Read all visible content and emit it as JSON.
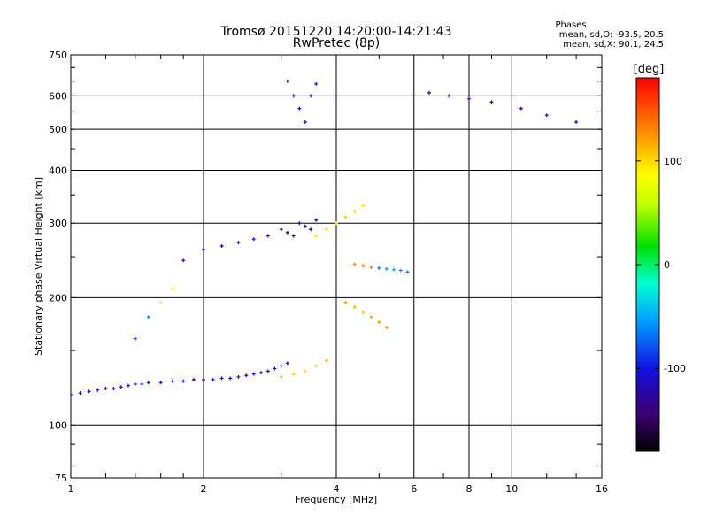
{
  "chart_data": {
    "type": "scatter",
    "title": "Tromsø 20151220 14:20:00-14:21:43",
    "subtitle": "RwPretec (8p)",
    "stats": {
      "heading": "Phases",
      "line1": "mean, sd,O: -93.5, 20.5",
      "line2": "mean, sd,X:  90.1, 24.5"
    },
    "xlabel": "Frequency [MHz]",
    "ylabel": "Stationary phase Virtual Height [km]",
    "x_scale": "log",
    "y_scale": "log",
    "xlim": [
      1,
      16
    ],
    "ylim": [
      75,
      750
    ],
    "xticks": [
      1,
      2,
      4,
      6,
      8,
      10,
      16
    ],
    "xtick_labels": [
      "1",
      "2",
      "4",
      "6",
      "8",
      "10",
      "16"
    ],
    "x_gridlines": [
      2,
      4,
      6,
      8,
      10
    ],
    "yticks": [
      75,
      100,
      200,
      300,
      400,
      500,
      600,
      750
    ],
    "ytick_labels": [
      "75",
      "100",
      "200",
      "300",
      "400",
      "500",
      "600",
      "750"
    ],
    "y_gridlines": [
      100,
      200,
      300,
      400,
      500,
      600
    ],
    "grid": true,
    "colorbar": {
      "label": "[deg]",
      "range": [
        -180,
        180
      ],
      "ticks": [
        100,
        0,
        -100
      ],
      "tick_labels": [
        "100",
        "0",
        "-100"
      ]
    },
    "series": [
      {
        "x": [
          1.0,
          1.05,
          1.1,
          1.15,
          1.2,
          1.25,
          1.3,
          1.35,
          1.4,
          1.45,
          1.5,
          1.6,
          1.7,
          1.8,
          1.9,
          2.0,
          2.1,
          2.2,
          2.3,
          2.4,
          2.5,
          2.6,
          2.7,
          2.8,
          2.9,
          3.0,
          3.1
        ],
        "y": [
          118,
          119,
          120,
          121,
          122,
          122,
          123,
          124,
          125,
          125,
          126,
          126,
          127,
          127,
          128,
          128,
          128,
          129,
          129,
          130,
          131,
          132,
          133,
          134,
          136,
          138,
          140
        ],
        "phase": [
          -110,
          -115,
          -110,
          -105,
          -110,
          -108,
          -112,
          -100,
          -110,
          -95,
          -105,
          -110,
          -100,
          -105,
          -110,
          -108,
          -105,
          -110,
          -102,
          -105,
          -110,
          -100,
          -105,
          -108,
          -110,
          -100,
          -105
        ]
      },
      {
        "x": [
          1.4,
          1.5,
          1.6,
          1.7,
          1.8,
          2.0,
          2.2,
          2.4,
          2.6,
          2.8
        ],
        "y": [
          160,
          180,
          195,
          210,
          245,
          260,
          265,
          270,
          275,
          280
        ],
        "phase": [
          -110,
          -60,
          80,
          75,
          -100,
          -105,
          -110,
          -105,
          -100,
          -110
        ]
      },
      {
        "x": [
          3.0,
          3.1,
          3.2,
          3.3,
          3.4,
          3.5,
          3.6
        ],
        "y": [
          290,
          285,
          280,
          300,
          295,
          290,
          305
        ],
        "phase": [
          -140,
          -145,
          -150,
          -140,
          -135,
          -145,
          -140
        ]
      },
      {
        "x": [
          3.1,
          3.2,
          3.3,
          3.4,
          3.5,
          3.6
        ],
        "y": [
          650,
          600,
          560,
          520,
          600,
          640
        ],
        "phase": [
          -115,
          -110,
          -105,
          -112,
          -108,
          -110
        ]
      },
      {
        "x": [
          3.0,
          3.2,
          3.4,
          3.6,
          3.8
        ],
        "y": [
          130,
          132,
          134,
          138,
          142
        ],
        "phase": [
          110,
          105,
          95,
          100,
          110
        ]
      },
      {
        "x": [
          3.6,
          3.8,
          4.0,
          4.2,
          4.4,
          4.6
        ],
        "y": [
          280,
          290,
          300,
          310,
          320,
          330
        ],
        "phase": [
          95,
          100,
          90,
          105,
          100,
          95
        ]
      },
      {
        "x": [
          4.4,
          4.6,
          4.8,
          5.0,
          5.2,
          5.4,
          5.6,
          5.8
        ],
        "y": [
          240,
          238,
          236,
          235,
          234,
          233,
          232,
          230
        ],
        "phase": [
          130,
          140,
          135,
          -60,
          -55,
          -50,
          -60,
          -65
        ]
      },
      {
        "x": [
          4.2,
          4.4,
          4.6,
          4.8,
          5.0,
          5.2
        ],
        "y": [
          195,
          190,
          185,
          180,
          175,
          170
        ],
        "phase": [
          120,
          115,
          125,
          118,
          122,
          130
        ]
      },
      {
        "x": [
          6.5,
          7.2,
          8.0,
          9.0,
          10.5,
          12.0,
          14.0
        ],
        "y": [
          610,
          600,
          590,
          580,
          560,
          540,
          520
        ],
        "phase": [
          -140,
          -110,
          -100,
          -120,
          -130,
          -110,
          -120
        ]
      }
    ]
  }
}
